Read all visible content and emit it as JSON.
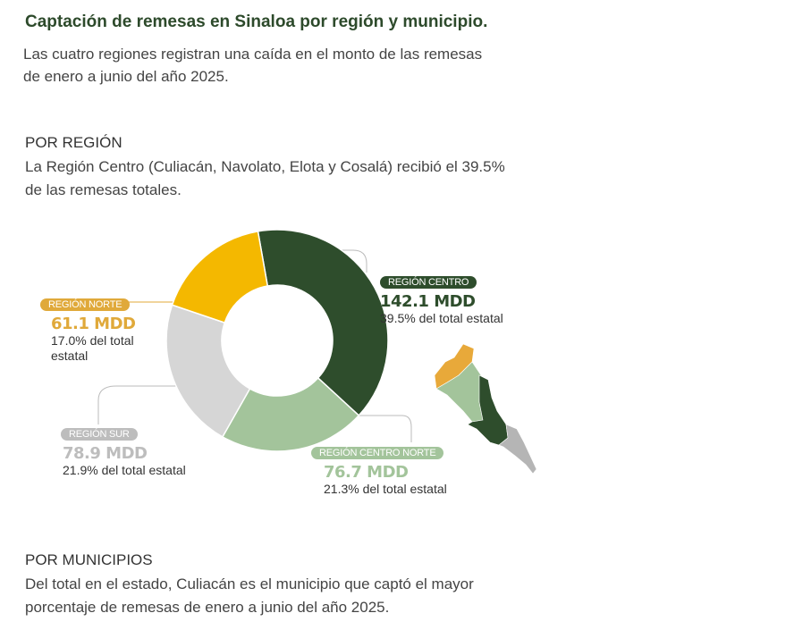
{
  "header": {
    "title": "Captación de remesas en Sinaloa por región y municipio.",
    "subtitle": "Las cuatro regiones registran una caída en el monto de las remesas de enero a junio del año 2025."
  },
  "region_section": {
    "heading": "POR REGIÓN",
    "text": "La Región Centro (Culiacán, Navolato, Elota y Cosalá) recibió el 39.5% de las remesas totales."
  },
  "municipio_section": {
    "heading": "POR MUNICIPIOS",
    "text": "Del total en el estado, Culiacán es el municipio que captó el mayor porcentaje de remesas de enero a junio del año 2025."
  },
  "chart_data": {
    "type": "pie",
    "donut": true,
    "unit": "MDD",
    "slices": [
      {
        "name": "REGIÓN CENTRO",
        "value": 142.1,
        "value_label": "142.1 MDD",
        "percent": 39.5,
        "percent_label": "39.5% del total estatal",
        "color": "#2e4d2c"
      },
      {
        "name": "REGIÓN CENTRO NORTE",
        "value": 76.7,
        "value_label": "76.7 MDD",
        "percent": 21.3,
        "percent_label": "21.3% del total estatal",
        "color": "#a3c49b"
      },
      {
        "name": "REGIÓN SUR",
        "value": 78.9,
        "value_label": "78.9 MDD",
        "percent": 21.9,
        "percent_label": "21.9% del total estatal",
        "color": "#d6d6d6"
      },
      {
        "name": "REGIÓN NORTE",
        "value": 61.1,
        "value_label": "61.1 MDD",
        "percent": 17.0,
        "percent_label": "17.0% del total estatal",
        "color": "#f4b800"
      }
    ]
  },
  "map_colors": {
    "norte": "#e8a93a",
    "centro_norte": "#a3c49b",
    "centro": "#2e4d2c",
    "sur": "#b5b5b5"
  },
  "label_colors": {
    "norte_text": "#e0a93a",
    "sur_text": "#bdbdbd",
    "centro_norte_text": "#a3c49b",
    "centro_text": "#2e4d2c"
  }
}
